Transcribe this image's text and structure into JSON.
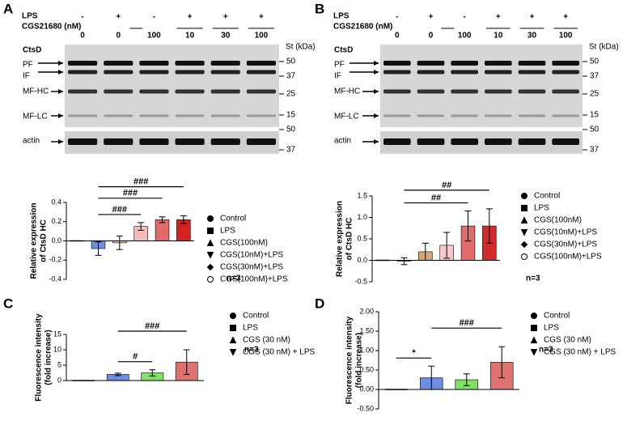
{
  "panel_letters": [
    "A",
    "B",
    "C",
    "D"
  ],
  "blots": [
    {
      "header_labels": [
        "LPS",
        "CGS21680 (nM)"
      ],
      "lps": [
        "-",
        "+",
        "-",
        "+",
        "+",
        "+"
      ],
      "dose": [
        "0",
        "0",
        "100",
        "10",
        "30",
        "100"
      ],
      "protein": "CtsD",
      "marker_title": "St (kDa)",
      "markers": [
        "50",
        "37",
        "25",
        "15",
        "50",
        "37"
      ],
      "bands": [
        "PF",
        "IF",
        "MF-HC",
        "MF-LC",
        "actin"
      ]
    },
    {
      "header_labels": [
        "LPS",
        "CGS21680 (nM)"
      ],
      "lps": [
        "-",
        "+",
        "-",
        "+",
        "+",
        "+"
      ],
      "dose": [
        "0",
        "0",
        "100",
        "10",
        "30",
        "100"
      ],
      "protein": "CtsD",
      "marker_title": "St (kDa)",
      "markers": [
        "50",
        "37",
        "25",
        "15",
        "50",
        "37"
      ],
      "bands": [
        "PF",
        "IF",
        "MF-HC",
        "MF-LC",
        "actin"
      ]
    }
  ],
  "chart_data": [
    {
      "type": "bar",
      "ylabel": [
        "Relative expression",
        "of CtsD HC"
      ],
      "categories": [
        "Control",
        "LPS",
        "CGS(100nM)",
        "CGS(10nM)+LPS",
        "CGS(30nM)+LPS",
        "CGS(100nM)+LPS"
      ],
      "values": [
        0,
        -0.08,
        -0.02,
        0.15,
        0.22,
        0.22
      ],
      "errors": [
        0,
        0.07,
        0.07,
        0.04,
        0.03,
        0.04
      ],
      "colors": [
        "none",
        "#6b8fdc",
        "#e8c9a2",
        "#f4bcbc",
        "#e46a6a",
        "#d42222"
      ],
      "markers": [
        "circle",
        "square",
        "triangle-up",
        "triangle-down",
        "diamond",
        "circle-open"
      ],
      "ylim": [
        -0.4,
        0.4
      ],
      "yticks": [
        -0.4,
        -0.2,
        {
          "value": 0,
          "label": "0.0"
        },
        0.2,
        0.4
      ],
      "significance": [
        {
          "label": "###",
          "between": [
            "LPS",
            "CGS(100nM)+LPS"
          ]
        },
        {
          "label": "###",
          "between": [
            "LPS",
            "CGS(30nM)+LPS"
          ]
        },
        {
          "label": "###",
          "between": [
            "LPS",
            "CGS(10nM)+LPS"
          ]
        }
      ],
      "note": "n=3"
    },
    {
      "type": "bar",
      "ylabel": [
        "Relative expression",
        "of CtsD HC"
      ],
      "categories": [
        "Control",
        "LPS",
        "CGS(100nM)",
        "CGS(10nM)+LPS",
        "CGS(30nM)+LPS",
        "CGS(100nM)+LPS"
      ],
      "values": [
        0,
        -0.02,
        0.2,
        0.35,
        0.8,
        0.8
      ],
      "errors": [
        0,
        0.08,
        0.2,
        0.3,
        0.35,
        0.4
      ],
      "colors": [
        "none",
        "#8fb0ec",
        "#d6a878",
        "#f6c8c8",
        "#e26a6a",
        "#d42a2a"
      ],
      "markers": [
        "circle",
        "square",
        "triangle-up",
        "triangle-down",
        "diamond",
        "circle-open"
      ],
      "ylim": [
        -0.5,
        1.5
      ],
      "yticks": [
        -0.5,
        {
          "value": 0,
          "label": "0.0"
        },
        0.5,
        {
          "value": 1,
          "label": "1.0"
        },
        1.5
      ],
      "significance": [
        {
          "label": "##",
          "between": [
            "LPS",
            "CGS(100nM)+LPS"
          ]
        },
        {
          "label": "##",
          "between": [
            "LPS",
            "CGS(30nM)+LPS"
          ]
        }
      ],
      "note": "n=3"
    },
    {
      "type": "bar",
      "ylabel": [
        "Fluorescence intensity",
        "(fold increase)"
      ],
      "categories": [
        "Control",
        "LPS",
        "CGS (30 nM)",
        "CGS (30 nM) + LPS"
      ],
      "values": [
        0,
        2,
        2.5,
        6
      ],
      "errors": [
        0,
        0.4,
        1,
        4
      ],
      "colors": [
        "none",
        "#6d8fe2",
        "#80e262",
        "#e27272"
      ],
      "markers": [
        "circle",
        "square",
        "triangle-up",
        "triangle-down"
      ],
      "ylim": [
        0,
        15
      ],
      "yticks": [
        0,
        5,
        10,
        15
      ],
      "significance": [
        {
          "label": "###",
          "between": [
            "LPS",
            "CGS (30 nM) + LPS"
          ]
        },
        {
          "label": "#",
          "between": [
            "LPS",
            "CGS (30 nM)"
          ]
        }
      ],
      "note": "n=3"
    },
    {
      "type": "bar",
      "ylabel": [
        "Fluorescence intensity",
        "(fold increase)"
      ],
      "categories": [
        "Control",
        "LPS",
        "CGS (30 nM)",
        "CGS (30 nM) + LPS"
      ],
      "values": [
        0,
        0.3,
        0.25,
        0.7
      ],
      "errors": [
        0,
        0.3,
        0.15,
        0.4
      ],
      "colors": [
        "none",
        "#6d8fe2",
        "#80e262",
        "#e27272"
      ],
      "markers": [
        "circle",
        "square",
        "triangle-up",
        "triangle-down"
      ],
      "ylim": [
        -0.5,
        2
      ],
      "yticks": [
        {
          "value": -0.5,
          "label": "-0.50"
        },
        {
          "value": 0,
          "label": "0.00"
        },
        {
          "value": 0.5,
          "label": "0.50"
        },
        {
          "value": 1,
          "label": "1.00"
        },
        {
          "value": 1.5,
          "label": "1.50"
        },
        {
          "value": 2,
          "label": "2.00"
        }
      ],
      "significance": [
        {
          "label": "###",
          "between": [
            "LPS",
            "CGS (30 nM) + LPS"
          ]
        },
        {
          "label": "*",
          "between": [
            "Control",
            "LPS"
          ]
        }
      ],
      "note": "n=3"
    }
  ]
}
